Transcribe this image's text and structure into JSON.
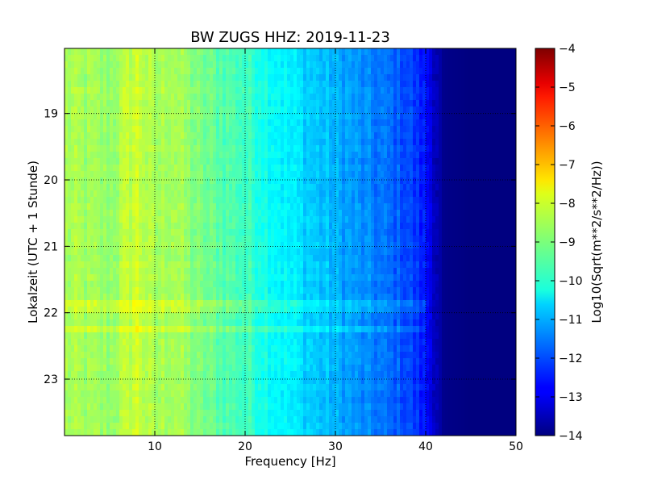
{
  "chart_data": {
    "type": "heatmap",
    "title": "BW ZUGS HHZ: 2019-11-23",
    "xlabel": "Frequency [Hz]",
    "ylabel": "Lokalzeit (UTC + 1 Stunde)",
    "xlim": [
      0,
      50
    ],
    "ylim": [
      18.02,
      23.85
    ],
    "y_inverted": true,
    "x_ticks": [
      10,
      20,
      30,
      40,
      50
    ],
    "y_ticks": [
      19,
      20,
      21,
      22,
      23
    ],
    "grid": true,
    "colormap": "jet",
    "colorbar": {
      "label": "Log10(Sqrt(m**2/s**2/Hz))",
      "range": [
        -14,
        -4
      ],
      "ticks": [
        -4,
        -5,
        -6,
        -7,
        -8,
        -9,
        -10,
        -11,
        -12,
        -13,
        -14
      ]
    },
    "spectrum_profile": {
      "frequency_hz": [
        0,
        5,
        8,
        10,
        12,
        15,
        18,
        20,
        23,
        25,
        28,
        30,
        33,
        35,
        38,
        40,
        41,
        42,
        45,
        50
      ],
      "log10_amplitude": [
        -8.6,
        -8.8,
        -8.2,
        -8.7,
        -8.5,
        -9.1,
        -9.4,
        -9.6,
        -10.1,
        -10.4,
        -10.8,
        -11.0,
        -11.4,
        -11.6,
        -12.0,
        -12.6,
        -13.2,
        -13.9,
        -14.0,
        -14.0
      ]
    },
    "notable_features": [
      {
        "time": 21.9,
        "note": "broadband horizontal line"
      },
      {
        "time": 22.28,
        "note": "bright streak at low frequency"
      }
    ]
  }
}
